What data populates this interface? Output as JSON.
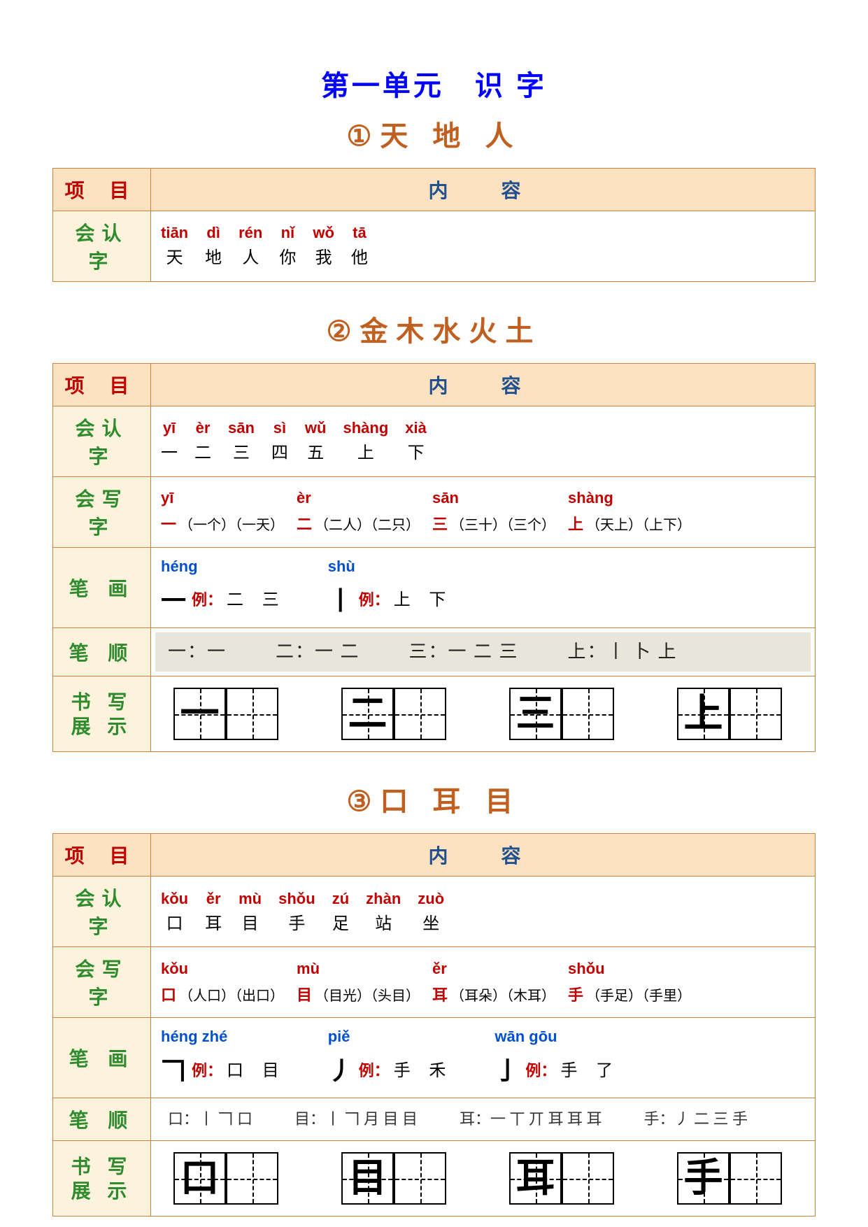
{
  "unit_title": "第一单元　识 字",
  "headers": {
    "left": "项 目",
    "right": "内　容"
  },
  "row_labels": {
    "recognize": "会认字",
    "write": "会写字",
    "stroke": "笔 画",
    "order": "笔 顺",
    "display": "书 写\n展 示"
  },
  "example_label": "例：",
  "lesson1": {
    "num": "①",
    "title": "天 地 人",
    "recognize": [
      {
        "py": "tiān",
        "ch": "天"
      },
      {
        "py": "dì",
        "ch": "地"
      },
      {
        "py": "rén",
        "ch": "人"
      },
      {
        "py": "nǐ",
        "ch": "你"
      },
      {
        "py": "wǒ",
        "ch": "我"
      },
      {
        "py": "tā",
        "ch": "他"
      }
    ]
  },
  "lesson2": {
    "num": "②",
    "title": "金木水火土",
    "recognize": [
      {
        "py": "yī",
        "ch": "一"
      },
      {
        "py": "èr",
        "ch": "二"
      },
      {
        "py": "sān",
        "ch": "三"
      },
      {
        "py": "sì",
        "ch": "四"
      },
      {
        "py": "wǔ",
        "ch": "五"
      },
      {
        "py": "shàng",
        "ch": "上"
      },
      {
        "py": "xià",
        "ch": "下"
      }
    ],
    "write": [
      {
        "py": "yī",
        "ch": "一",
        "words": "（一个）（一天）"
      },
      {
        "py": "èr",
        "ch": "二",
        "words": "（二人）（二只）"
      },
      {
        "py": "sān",
        "ch": "三",
        "words": "（三十）（三个）"
      },
      {
        "py": "shàng",
        "ch": "上",
        "words": "（天上）（上下）"
      }
    ],
    "strokes": [
      {
        "py": "héng",
        "glyph": "一",
        "ex": "二 三"
      },
      {
        "py": "shù",
        "glyph": "丨",
        "ex": "上 下"
      }
    ],
    "order": [
      "一：一",
      "二：一 二",
      "三：一 二 三",
      "上：丨 卜 上"
    ],
    "display": [
      "一",
      "二",
      "三",
      "上"
    ]
  },
  "lesson3": {
    "num": "③",
    "title": "口 耳 目",
    "recognize": [
      {
        "py": "kǒu",
        "ch": "口"
      },
      {
        "py": "ěr",
        "ch": "耳"
      },
      {
        "py": "mù",
        "ch": "目"
      },
      {
        "py": "shǒu",
        "ch": "手"
      },
      {
        "py": "zú",
        "ch": "足"
      },
      {
        "py": "zhàn",
        "ch": "站"
      },
      {
        "py": "zuò",
        "ch": "坐"
      }
    ],
    "write": [
      {
        "py": "kǒu",
        "ch": "口",
        "words": "（人口）（出口）"
      },
      {
        "py": "mù",
        "ch": "目",
        "words": "（目光）（头目）"
      },
      {
        "py": "ěr",
        "ch": "耳",
        "words": "（耳朵）（木耳）"
      },
      {
        "py": "shǒu",
        "ch": "手",
        "words": "（手足）（手里）"
      }
    ],
    "strokes": [
      {
        "py": "héng zhé",
        "glyph": "𠃍",
        "ex": "口 目"
      },
      {
        "py": "piě",
        "glyph": "丿",
        "ex": "手 禾"
      },
      {
        "py": "wān gōu",
        "glyph": "亅",
        "ex": "手 了"
      }
    ],
    "order": [
      "口：丨 𠃍 口",
      "目：丨 𠃍 月 目 目",
      "耳：一 丅 丌 耳 耳 耳",
      "手：丿 二 三 手"
    ],
    "display": [
      "口",
      "目",
      "耳",
      "手"
    ]
  }
}
